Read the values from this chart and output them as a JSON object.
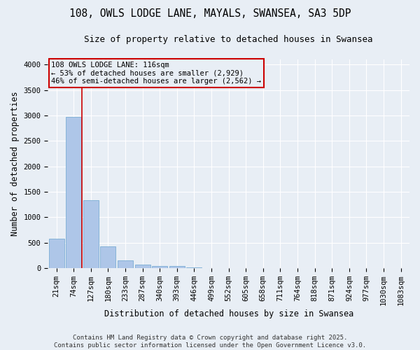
{
  "title1": "108, OWLS LODGE LANE, MAYALS, SWANSEA, SA3 5DP",
  "title2": "Size of property relative to detached houses in Swansea",
  "xlabel": "Distribution of detached houses by size in Swansea",
  "ylabel": "Number of detached properties",
  "categories": [
    "21sqm",
    "74sqm",
    "127sqm",
    "180sqm",
    "233sqm",
    "287sqm",
    "340sqm",
    "393sqm",
    "446sqm",
    "499sqm",
    "552sqm",
    "605sqm",
    "658sqm",
    "711sqm",
    "764sqm",
    "818sqm",
    "871sqm",
    "924sqm",
    "977sqm",
    "1030sqm",
    "1083sqm"
  ],
  "values": [
    580,
    2970,
    1340,
    430,
    155,
    75,
    45,
    35,
    20,
    0,
    0,
    0,
    0,
    0,
    0,
    0,
    0,
    0,
    0,
    0,
    0
  ],
  "bar_color": "#aec6e8",
  "bar_edge_color": "#7aadd4",
  "background_color": "#e8eef5",
  "grid_color": "#ffffff",
  "vline_color": "#cc0000",
  "annotation_text": "108 OWLS LODGE LANE: 116sqm\n← 53% of detached houses are smaller (2,929)\n46% of semi-detached houses are larger (2,562) →",
  "annotation_box_color": "#cc0000",
  "footer1": "Contains HM Land Registry data © Crown copyright and database right 2025.",
  "footer2": "Contains public sector information licensed under the Open Government Licence v3.0.",
  "ylim": [
    0,
    4100
  ],
  "yticks": [
    0,
    500,
    1000,
    1500,
    2000,
    2500,
    3000,
    3500,
    4000
  ],
  "title1_fontsize": 10.5,
  "title2_fontsize": 9,
  "axis_label_fontsize": 8.5,
  "tick_fontsize": 7.5,
  "footer_fontsize": 6.5,
  "annot_fontsize": 7.5
}
